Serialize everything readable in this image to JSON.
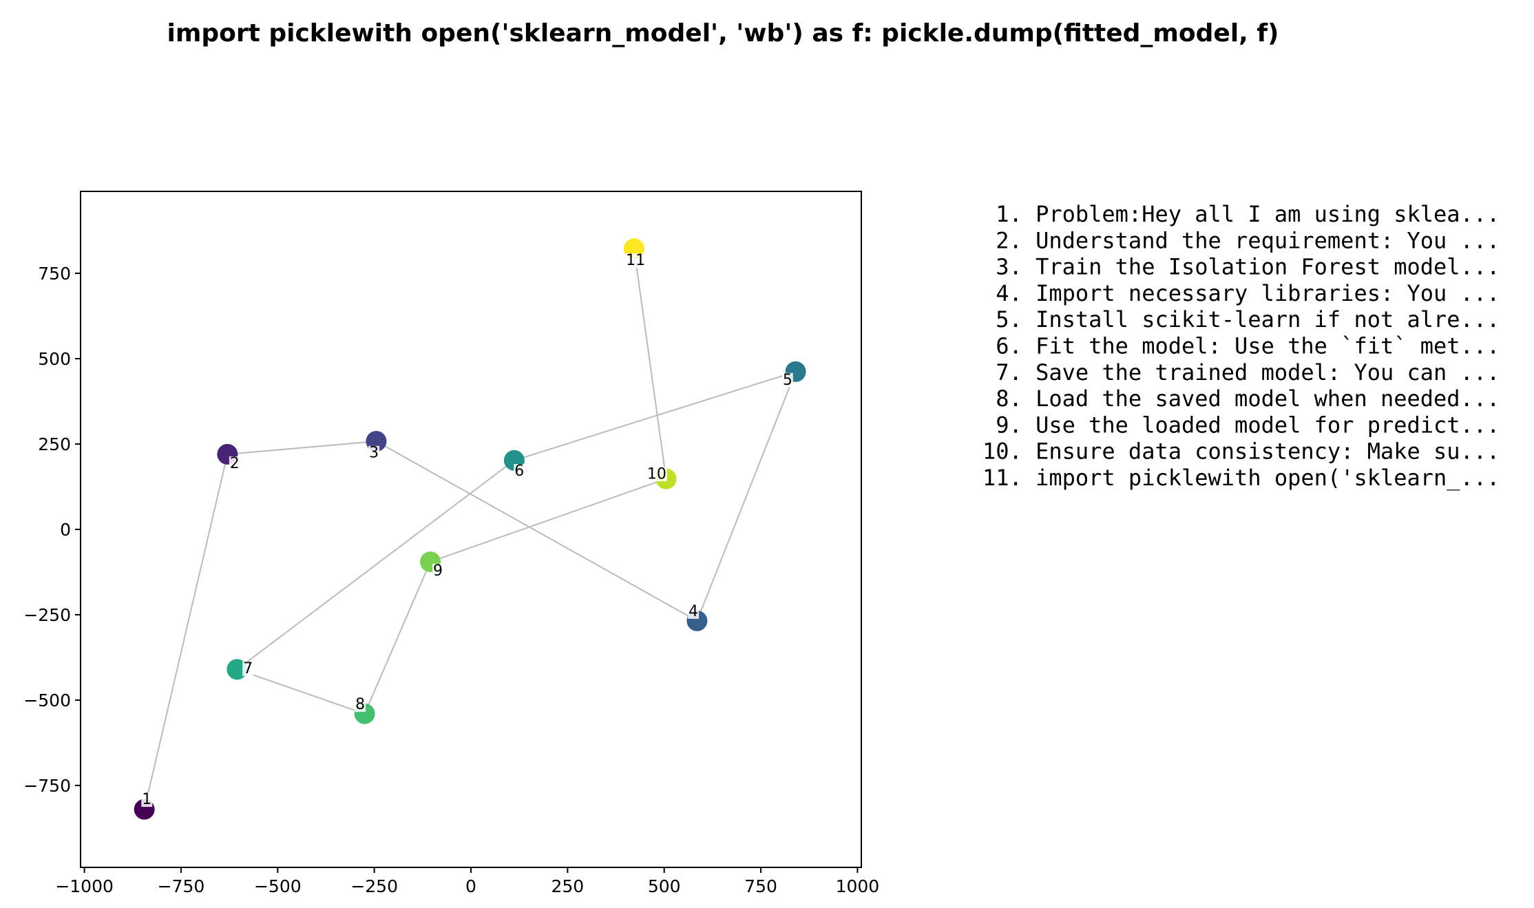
{
  "chart_data": {
    "type": "scatter",
    "title": "import picklewith open('sklearn_model', 'wb') as f:    pickle.dump(fitted_model, f)",
    "xlabel": "",
    "ylabel": "",
    "xlim": [
      -1010,
      1010
    ],
    "ylim": [
      -990,
      990
    ],
    "xticks": [
      -1000,
      -750,
      -500,
      -250,
      0,
      250,
      500,
      750,
      1000
    ],
    "xtick_labels": [
      "−1000",
      "−750",
      "−500",
      "−250",
      "0",
      "250",
      "500",
      "750",
      "1000"
    ],
    "yticks": [
      -750,
      -500,
      -250,
      0,
      250,
      500,
      750
    ],
    "ytick_labels": [
      "−750",
      "−500",
      "−250",
      "0",
      "250",
      "500",
      "750"
    ],
    "grid": false,
    "connector_color": "#bbbbbb",
    "points": [
      {
        "label": "1",
        "x": -845,
        "y": -820,
        "color": "#440154"
      },
      {
        "label": "2",
        "x": -630,
        "y": 220,
        "color": "#482475"
      },
      {
        "label": "3",
        "x": -245,
        "y": 258,
        "color": "#414487"
      },
      {
        "label": "4",
        "x": 585,
        "y": -268,
        "color": "#355f8d"
      },
      {
        "label": "5",
        "x": 840,
        "y": 462,
        "color": "#2a788e"
      },
      {
        "label": "6",
        "x": 112,
        "y": 202,
        "color": "#21918c"
      },
      {
        "label": "7",
        "x": -605,
        "y": -410,
        "color": "#22a884"
      },
      {
        "label": "8",
        "x": -275,
        "y": -540,
        "color": "#44bf70"
      },
      {
        "label": "9",
        "x": -105,
        "y": -95,
        "color": "#7ad151"
      },
      {
        "label": "10",
        "x": 505,
        "y": 148,
        "color": "#bddf26"
      },
      {
        "label": "11",
        "x": 422,
        "y": 822,
        "color": "#fde725"
      }
    ],
    "legend": [
      " 1. Problem:Hey all I am using sklea...",
      " 2. Understand the requirement: You ...",
      " 3. Train the Isolation Forest model...",
      " 4. Import necessary libraries: You ...",
      " 5. Install scikit-learn if not alre...",
      " 6. Fit the model: Use the `fit` met...",
      " 7. Save the trained model: You can ...",
      " 8. Load the saved model when needed...",
      " 9. Use the loaded model for predict...",
      "10. Ensure data consistency: Make su...",
      "11. import picklewith open('sklearn_..."
    ]
  }
}
